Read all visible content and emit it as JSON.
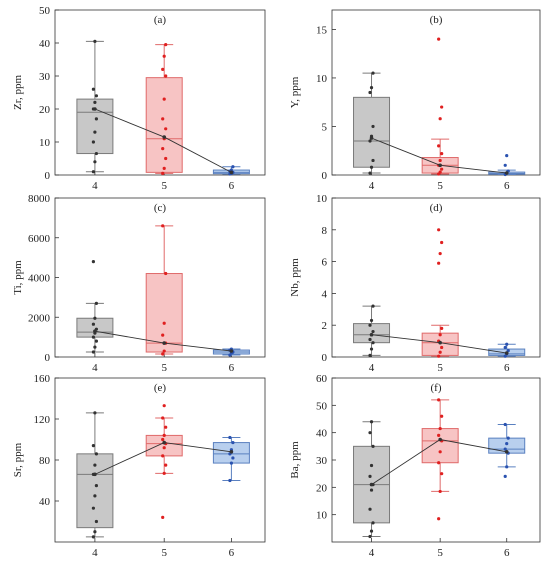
{
  "colors": {
    "group4": {
      "fill": "#c8c8c8",
      "stroke": "#7a7a7a",
      "point": "#333333"
    },
    "group5": {
      "fill": "#f7c4c4",
      "stroke": "#e06a6a",
      "point": "#e02020"
    },
    "group6": {
      "fill": "#b8cfee",
      "stroke": "#5a80c0",
      "point": "#2a52b0"
    },
    "mean_line": "#333333"
  },
  "chart_data": [
    {
      "type": "box",
      "panel_label": "(a)",
      "ylabel": "Zr, ppm",
      "categories": [
        "4",
        "5",
        "6"
      ],
      "ylim": [
        0,
        50
      ],
      "yticks": [
        "0",
        "10",
        "20",
        "30",
        "40",
        "50"
      ],
      "boxes": [
        {
          "whisker_low": 1,
          "q1": 6.5,
          "median": 19,
          "q3": 23,
          "whisker_high": 40.5
        },
        {
          "whisker_low": 0.5,
          "q1": 0.8,
          "median": 11,
          "q3": 29.5,
          "whisker_high": 39.5
        },
        {
          "whisker_low": 0.3,
          "q1": 0.4,
          "median": 0.8,
          "q3": 1.5,
          "whisker_high": 2.5
        }
      ],
      "means": [
        20,
        11.5,
        0.8
      ],
      "points": [
        [
          1,
          4,
          6.5,
          10,
          13,
          17,
          20,
          22,
          24,
          26,
          40.5
        ],
        [
          0.5,
          2,
          5,
          8,
          11,
          14,
          17,
          23,
          30,
          32,
          36,
          39.5
        ],
        [
          0.3,
          0.5,
          0.8,
          1.1,
          1.5,
          2.5
        ]
      ]
    },
    {
      "type": "box",
      "panel_label": "(b)",
      "ylabel": "Y, ppm",
      "categories": [
        "4",
        "5",
        "6"
      ],
      "ylim": [
        0,
        17
      ],
      "yticks": [
        "0",
        "5",
        "10",
        "15"
      ],
      "ytick_values": [
        0,
        5,
        10,
        15
      ],
      "boxes": [
        {
          "whisker_low": 0.2,
          "q1": 0.8,
          "median": 3.5,
          "q3": 8,
          "whisker_high": 10.5
        },
        {
          "whisker_low": 0.1,
          "q1": 0.2,
          "median": 1,
          "q3": 1.8,
          "whisker_high": 3.7
        },
        {
          "whisker_low": 0.05,
          "q1": 0.08,
          "median": 0.15,
          "q3": 0.3,
          "whisker_high": 0.5
        }
      ],
      "means": [
        3.8,
        1.0,
        0.2
      ],
      "points": [
        [
          0.2,
          0.8,
          1.5,
          3.5,
          4,
          5,
          8.5,
          9,
          10.5
        ],
        [
          0.1,
          0.3,
          0.6,
          1,
          1.5,
          2.2,
          3,
          5.8,
          7,
          14
        ],
        [
          0.05,
          0.2,
          0.4,
          1,
          2
        ]
      ]
    },
    {
      "type": "box",
      "panel_label": "(c)",
      "ylabel": "Ti, ppm",
      "categories": [
        "4",
        "5",
        "6"
      ],
      "ylim": [
        0,
        8000
      ],
      "yticks": [
        "0",
        "2000",
        "4000",
        "6000",
        "8000"
      ],
      "ytick_values": [
        0,
        2000,
        4000,
        6000,
        8000
      ],
      "boxes": [
        {
          "whisker_low": 250,
          "q1": 1000,
          "median": 1250,
          "q3": 1950,
          "whisker_high": 2700
        },
        {
          "whisker_low": 150,
          "q1": 250,
          "median": 700,
          "q3": 4200,
          "whisker_high": 6600
        },
        {
          "whisker_low": 100,
          "q1": 150,
          "median": 250,
          "q3": 350,
          "whisker_high": 400
        }
      ],
      "means": [
        1300,
        700,
        300
      ],
      "points": [
        [
          250,
          500,
          800,
          1000,
          1200,
          1400,
          1650,
          1950,
          2700,
          4800
        ],
        [
          150,
          300,
          700,
          1100,
          1700,
          4200,
          6600
        ],
        [
          100,
          200,
          250,
          350,
          400
        ]
      ]
    },
    {
      "type": "box",
      "panel_label": "(d)",
      "ylabel": "Nb, ppm",
      "categories": [
        "4",
        "5",
        "6"
      ],
      "ylim": [
        0,
        10
      ],
      "yticks": [
        "0",
        "2",
        "4",
        "6",
        "8",
        "10"
      ],
      "ytick_values": [
        0,
        2,
        4,
        6,
        8,
        10
      ],
      "boxes": [
        {
          "whisker_low": 0.1,
          "q1": 0.9,
          "median": 1.4,
          "q3": 2.1,
          "whisker_high": 3.2
        },
        {
          "whisker_low": 0.05,
          "q1": 0.1,
          "median": 0.9,
          "q3": 1.5,
          "whisker_high": 2.0
        },
        {
          "whisker_low": 0.05,
          "q1": 0.1,
          "median": 0.2,
          "q3": 0.5,
          "whisker_high": 0.8
        }
      ],
      "means": [
        1.4,
        0.9,
        0.25
      ],
      "points": [
        [
          0.1,
          0.5,
          0.9,
          1.1,
          1.4,
          1.6,
          2.0,
          2.3,
          3.2
        ],
        [
          0.05,
          0.3,
          0.6,
          1.0,
          1.4,
          1.8,
          5.9,
          6.5,
          7.2,
          8.0
        ],
        [
          0.05,
          0.2,
          0.4,
          0.6,
          0.8
        ]
      ]
    },
    {
      "type": "box",
      "panel_label": "(e)",
      "ylabel": "Sr, ppm",
      "categories": [
        "4",
        "5",
        "6"
      ],
      "ylim": [
        0,
        160
      ],
      "yticks": [
        "40",
        "80",
        "120",
        "160"
      ],
      "ytick_values": [
        40,
        80,
        120,
        160
      ],
      "boxes": [
        {
          "whisker_low": 5,
          "q1": 14,
          "median": 66,
          "q3": 86,
          "whisker_high": 126
        },
        {
          "whisker_low": 67,
          "q1": 84,
          "median": 96,
          "q3": 104,
          "whisker_high": 121
        },
        {
          "whisker_low": 60,
          "q1": 77,
          "median": 86,
          "q3": 97,
          "whisker_high": 102
        }
      ],
      "means": [
        66,
        97,
        88
      ],
      "points": [
        [
          5,
          10,
          20,
          33,
          45,
          55,
          66,
          75,
          86,
          94,
          126
        ],
        [
          24,
          67,
          75,
          84,
          92,
          96,
          100,
          104,
          112,
          121,
          133
        ],
        [
          60,
          77,
          82,
          86,
          90,
          97,
          102
        ]
      ]
    },
    {
      "type": "box",
      "panel_label": "(f)",
      "ylabel": "Ba, ppm",
      "categories": [
        "4",
        "5",
        "6"
      ],
      "ylim": [
        0,
        60
      ],
      "yticks": [
        "10",
        "20",
        "30",
        "40",
        "50",
        "60"
      ],
      "ytick_values": [
        10,
        20,
        30,
        40,
        50,
        60
      ],
      "boxes": [
        {
          "whisker_low": 2,
          "q1": 7,
          "median": 21,
          "q3": 35,
          "whisker_high": 44
        },
        {
          "whisker_low": 18.5,
          "q1": 29,
          "median": 37,
          "q3": 41.5,
          "whisker_high": 52
        },
        {
          "whisker_low": 27.5,
          "q1": 32.5,
          "median": 34,
          "q3": 38,
          "whisker_high": 43
        }
      ],
      "means": [
        21,
        37.5,
        33
      ],
      "points": [
        [
          2,
          4,
          7,
          12,
          19,
          21,
          24,
          28,
          35,
          40,
          44
        ],
        [
          8.5,
          18.5,
          25,
          29,
          33,
          37,
          39,
          41.5,
          46,
          52
        ],
        [
          24,
          27.5,
          32.5,
          34,
          36,
          38,
          43
        ]
      ]
    }
  ]
}
